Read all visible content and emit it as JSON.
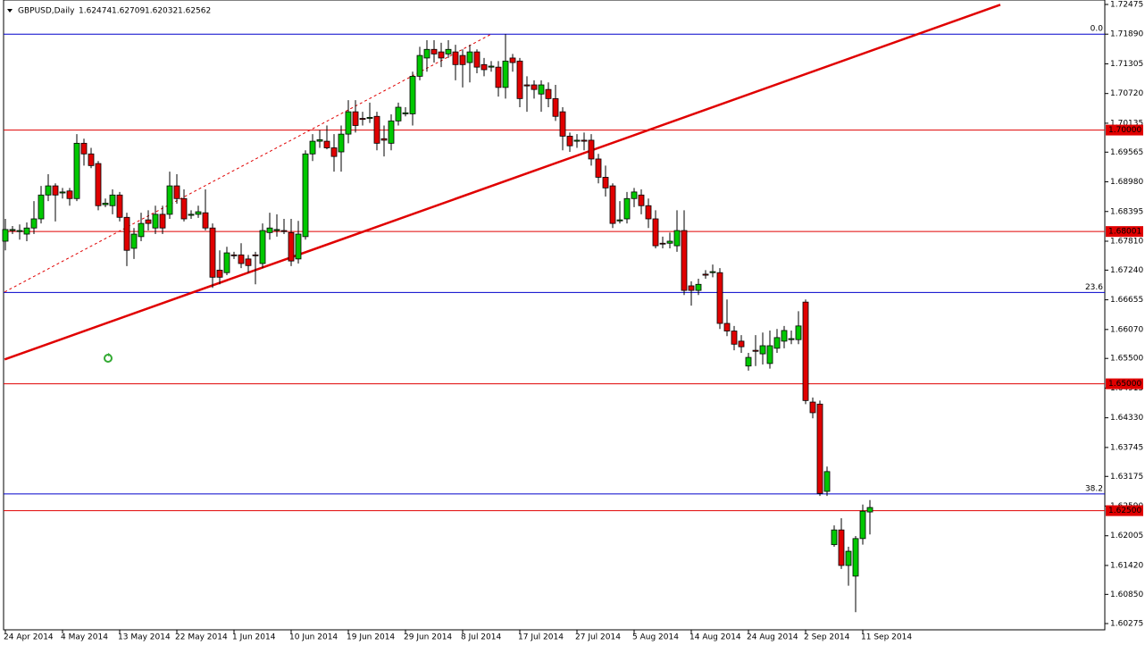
{
  "chart_data": {
    "type": "candlestick",
    "title": "GBPUSD,Daily",
    "up_color": "#00c800",
    "down_color": "#e00000",
    "level_color": "#e00000",
    "fibo_color": "#0000cc",
    "trend_color": "#e00000",
    "dates": [
      "24 Apr 2014",
      "4 May 2014",
      "13 May 2014",
      "22 May 2014",
      "1 Jun 2014",
      "10 Jun 2014",
      "19 Jun 2014",
      "29 Jun 2014",
      "8 Jul 2014",
      "17 Jul 2014",
      "27 Jul 2014",
      "5 Aug 2014",
      "14 Aug 2014",
      "24 Aug 2014",
      "2 Sep 2014",
      "11 Sep 2014"
    ],
    "open": [
      1.6781,
      1.6802,
      1.68,
      1.6795,
      1.6807,
      1.6825,
      1.6872,
      1.689,
      1.6876,
      1.688,
      1.6865,
      1.6974,
      1.6953,
      1.6934,
      1.6853,
      1.6851,
      1.6872,
      1.6828,
      1.6767,
      1.679,
      1.6823,
      1.6807,
      1.6834,
      1.6834,
      1.689,
      1.6865,
      1.6832,
      1.6834,
      1.6837,
      1.6807,
      1.6724,
      1.6719,
      1.6754,
      1.6754,
      1.6746,
      1.6754,
      1.6737,
      1.6798,
      1.6802,
      1.6802,
      1.6798,
      1.6746,
      1.679,
      1.6953,
      1.6978,
      1.6978,
      1.6965,
      1.6957,
      1.6992,
      1.7036,
      1.7023,
      1.7023,
      1.7027,
      1.6983,
      1.6974,
      1.7018,
      1.7032,
      1.7032,
      1.7106,
      1.7142,
      1.7159,
      1.7154,
      1.715,
      1.7154,
      1.7147,
      1.7133,
      1.7154,
      1.7129,
      1.7124,
      1.7124,
      1.7084,
      1.7142,
      1.7136,
      1.7089,
      1.7089,
      1.7071,
      1.708,
      1.7062,
      1.7036,
      1.6988,
      1.6978,
      1.698,
      1.698,
      1.6943,
      1.6907,
      1.689,
      1.6821,
      1.6825,
      1.6865,
      1.6872,
      1.6851,
      1.6825,
      1.6777,
      1.6777,
      1.6772,
      1.6802,
      1.6693,
      1.6684,
      1.6716,
      1.6719,
      1.6719,
      1.6619,
      1.6604,
      1.6584,
      1.6535,
      1.6566,
      1.6559,
      1.654,
      1.657,
      1.6584,
      1.6587,
      1.6587,
      1.6661,
      1.6464,
      1.646,
      1.6288,
      1.6183,
      1.6212,
      1.6142,
      1.6121,
      1.6195,
      1.62474
    ],
    "high": [
      1.6825,
      1.6811,
      1.6814,
      1.6818,
      1.686,
      1.689,
      1.6913,
      1.6895,
      1.6886,
      1.6886,
      1.6992,
      1.6983,
      1.6965,
      1.6939,
      1.6865,
      1.6883,
      1.6878,
      1.6837,
      1.6807,
      1.6837,
      1.6842,
      1.6851,
      1.6851,
      1.6918,
      1.6913,
      1.6883,
      1.6842,
      1.6851,
      1.6883,
      1.6816,
      1.6763,
      1.677,
      1.676,
      1.6777,
      1.6754,
      1.676,
      1.6816,
      1.6837,
      1.6834,
      1.6825,
      1.6825,
      1.6821,
      1.696,
      1.6992,
      1.7,
      1.7009,
      1.6992,
      1.7009,
      1.7059,
      1.7059,
      1.7036,
      1.7054,
      1.7036,
      1.7009,
      1.7031,
      1.7054,
      1.7045,
      1.7115,
      1.7164,
      1.7177,
      1.7177,
      1.7172,
      1.7177,
      1.7168,
      1.7159,
      1.7168,
      1.7159,
      1.7142,
      1.7136,
      1.7136,
      1.7189,
      1.715,
      1.7142,
      1.7106,
      1.7098,
      1.7098,
      1.7094,
      1.7089,
      1.7045,
      1.6995,
      1.6992,
      1.6995,
      1.6992,
      1.6953,
      1.693,
      1.6895,
      1.686,
      1.6878,
      1.6886,
      1.6883,
      1.6865,
      1.6842,
      1.679,
      1.6798,
      1.6842,
      1.6842,
      1.6702,
      1.6707,
      1.6724,
      1.6735,
      1.6728,
      1.6666,
      1.6614,
      1.6596,
      1.6561,
      1.6596,
      1.6601,
      1.6605,
      1.6608,
      1.6614,
      1.6605,
      1.6643,
      1.6666,
      1.6473,
      1.6467,
      1.6337,
      1.6221,
      1.6235,
      1.6179,
      1.62,
      1.6262,
      1.62709
    ],
    "low": [
      1.6763,
      1.6795,
      1.6784,
      1.6781,
      1.6795,
      1.6816,
      1.686,
      1.682,
      1.6865,
      1.6851,
      1.686,
      1.693,
      1.6925,
      1.6842,
      1.6848,
      1.6834,
      1.682,
      1.6732,
      1.6746,
      1.6781,
      1.6802,
      1.6795,
      1.6795,
      1.6825,
      1.6855,
      1.682,
      1.6825,
      1.6827,
      1.6802,
      1.6689,
      1.6696,
      1.6714,
      1.6746,
      1.6728,
      1.6719,
      1.6696,
      1.6728,
      1.6784,
      1.679,
      1.6795,
      1.6732,
      1.6737,
      1.6784,
      1.6939,
      1.6965,
      1.6962,
      1.6918,
      1.6918,
      1.6974,
      1.6995,
      1.7009,
      1.7014,
      1.696,
      1.6948,
      1.696,
      1.7009,
      1.7027,
      1.7009,
      1.7098,
      1.7115,
      1.7133,
      1.7124,
      1.7142,
      1.7098,
      1.7084,
      1.7094,
      1.7112,
      1.7106,
      1.7115,
      1.7066,
      1.7062,
      1.7115,
      1.7045,
      1.7036,
      1.7062,
      1.7036,
      1.7045,
      1.7018,
      1.696,
      1.6957,
      1.6965,
      1.696,
      1.693,
      1.6895,
      1.6869,
      1.6807,
      1.6816,
      1.6816,
      1.6848,
      1.6834,
      1.6807,
      1.6767,
      1.6767,
      1.6767,
      1.676,
      1.6675,
      1.6654,
      1.6675,
      1.6707,
      1.671,
      1.6608,
      1.6594,
      1.6566,
      1.6561,
      1.6526,
      1.6535,
      1.6538,
      1.653,
      1.6561,
      1.657,
      1.6578,
      1.6578,
      1.646,
      1.6432,
      1.6279,
      1.6279,
      1.6179,
      1.6135,
      1.6102,
      1.605,
      1.6183,
      1.62032
    ],
    "close": [
      1.6804,
      1.6804,
      1.6802,
      1.6807,
      1.6825,
      1.6872,
      1.689,
      1.6872,
      1.6878,
      1.6865,
      1.6974,
      1.6953,
      1.693,
      1.6851,
      1.6856,
      1.6872,
      1.6828,
      1.6763,
      1.6795,
      1.6816,
      1.6816,
      1.6834,
      1.6807,
      1.689,
      1.6865,
      1.6825,
      1.6834,
      1.6839,
      1.6807,
      1.671,
      1.671,
      1.6758,
      1.6753,
      1.6737,
      1.6733,
      1.6753,
      1.6802,
      1.6807,
      1.6804,
      1.68,
      1.6742,
      1.6795,
      1.6953,
      1.6978,
      1.6981,
      1.6965,
      1.6948,
      1.6992,
      1.7036,
      1.7009,
      1.7021,
      1.7025,
      1.6974,
      1.698,
      1.7018,
      1.7045,
      1.7034,
      1.7106,
      1.7147,
      1.7159,
      1.715,
      1.7142,
      1.7159,
      1.7129,
      1.7129,
      1.7154,
      1.7124,
      1.7119,
      1.7126,
      1.7084,
      1.7136,
      1.7133,
      1.7062,
      1.7087,
      1.708,
      1.7089,
      1.7062,
      1.7027,
      1.6988,
      1.6969,
      1.698,
      1.6978,
      1.6943,
      1.6907,
      1.6886,
      1.6816,
      1.6823,
      1.6865,
      1.6878,
      1.6851,
      1.6825,
      1.6772,
      1.6776,
      1.6781,
      1.6802,
      1.6684,
      1.6684,
      1.6696,
      1.6714,
      1.6721,
      1.6619,
      1.6604,
      1.6578,
      1.6573,
      1.6552,
      1.6564,
      1.6575,
      1.6575,
      1.6591,
      1.6605,
      1.6589,
      1.6614,
      1.6467,
      1.6443,
      1.6284,
      1.6327,
      1.6212,
      1.6142,
      1.617,
      1.6195,
      1.6249,
      1.62562
    ],
    "ylim": [
      1.60275,
      1.72475
    ],
    "yticks": [
      1.72475,
      {
        "value": 1.7189,
        "label": "1.71890"
      },
      1.71305,
      {
        "value": 1.7072,
        "label": "1.70720"
      },
      1.70135,
      1.69565,
      {
        "value": 1.6898,
        "label": "1.68980"
      },
      1.68395,
      {
        "value": 1.6781,
        "label": "1.67810"
      },
      {
        "value": 1.6724,
        "label": "1.67240"
      },
      1.66655,
      {
        "value": 1.6607,
        "label": "1.66070"
      },
      {
        "value": 1.655,
        "label": "1.65500"
      },
      1.64915,
      {
        "value": 1.6433,
        "label": "1.64330"
      },
      1.63745,
      1.63175,
      {
        "value": 1.6259,
        "label": "1.62590"
      },
      1.62005,
      {
        "value": 1.6142,
        "label": "1.61420"
      },
      {
        "value": 1.6085,
        "label": "1.60850"
      },
      1.60275
    ],
    "levels": [
      {
        "value": 1.7,
        "label": "1.70000"
      },
      {
        "value": 1.68001,
        "label": "1.68001"
      },
      {
        "value": 1.65,
        "label": "1.65000"
      },
      {
        "value": 1.625,
        "label": "1.62500"
      }
    ],
    "fibo": [
      {
        "value": 1.7189,
        "label": "0.0"
      },
      {
        "value": 1.668,
        "label": "23.6"
      },
      {
        "value": 1.6283,
        "label": "38.2"
      }
    ],
    "trendlines": [
      {
        "style": "solid",
        "points": [
          [
            -0.1,
            1.6548
          ],
          [
            139.25,
            1.7247
          ]
        ]
      },
      {
        "style": "dashed",
        "points": [
          [
            -0.1,
            1.6681
          ],
          [
            68,
            1.7189
          ]
        ]
      }
    ]
  }
}
